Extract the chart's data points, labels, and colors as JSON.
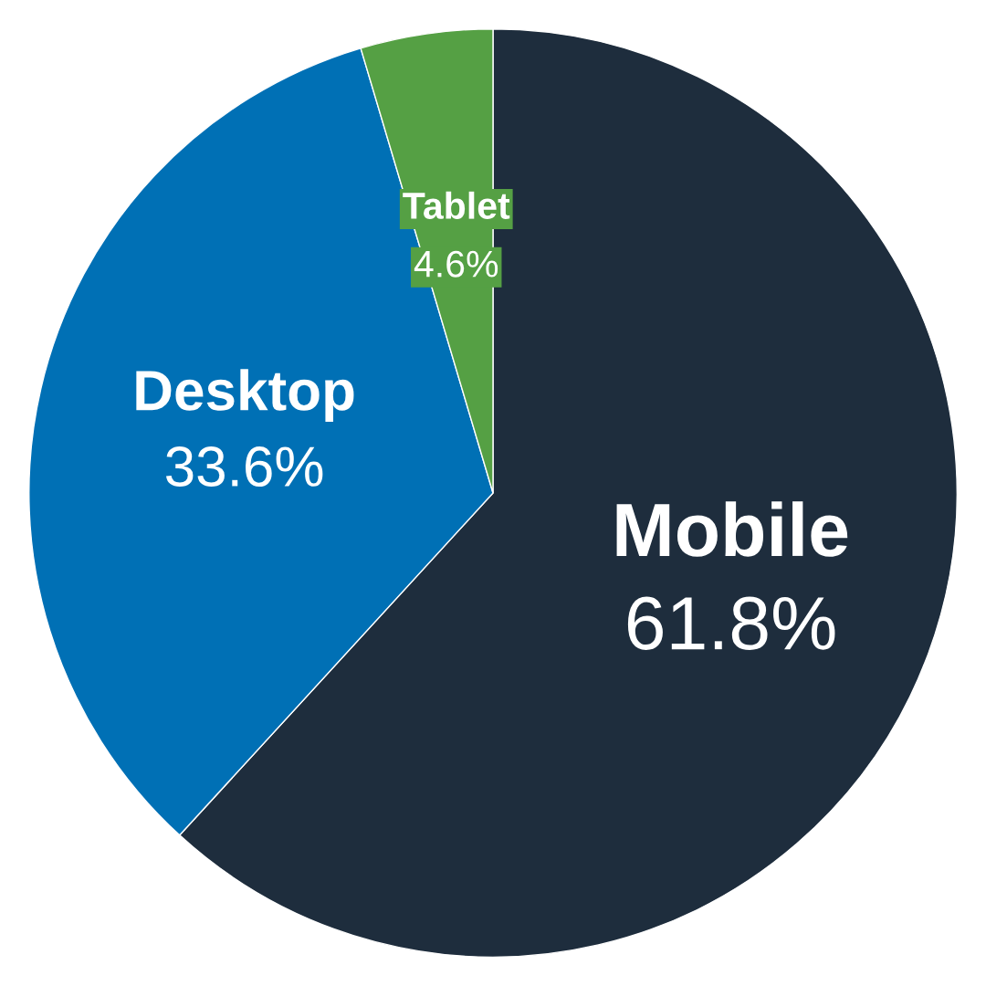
{
  "chart_data": {
    "type": "pie",
    "categories": [
      "Mobile",
      "Desktop",
      "Tablet"
    ],
    "values": [
      61.8,
      33.6,
      4.6
    ],
    "colors": [
      "#1e2d3d",
      "#0070b5",
      "#55a044"
    ],
    "value_labels": [
      "61.8%",
      "33.6%",
      "4.6%"
    ]
  }
}
